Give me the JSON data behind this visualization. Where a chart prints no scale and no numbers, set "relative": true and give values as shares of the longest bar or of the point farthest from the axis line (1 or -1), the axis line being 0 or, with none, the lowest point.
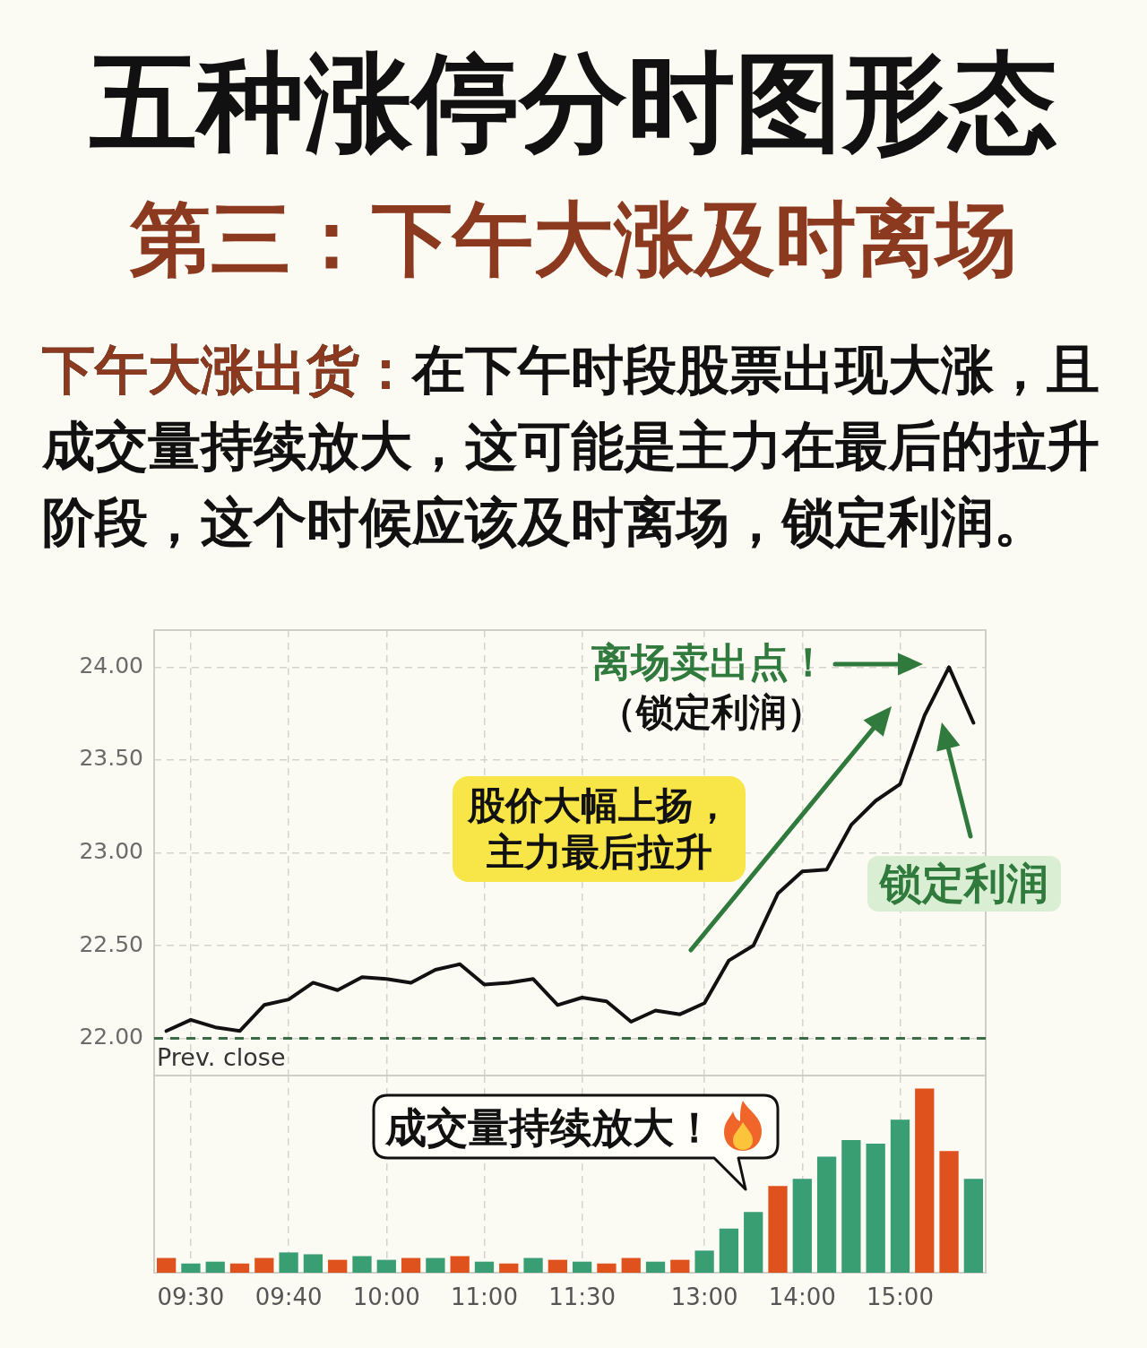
{
  "chart_data": [
    {
      "type": "line",
      "title": "五种涨停分时图形态",
      "subtitle": "第三：下午大涨及时离场",
      "annotations": [
        "下午大涨出货：在下午时段股票出现大涨，且成交量持续放大，这可能是主力在最后的拉升阶段，这个时候应该及时离场，锁定利润。",
        "离场卖出点！",
        "（锁定利润）",
        "股价大幅上扬，主力最后拉升",
        "锁定利润"
      ],
      "categories": [
        null,
        null,
        null,
        null,
        null,
        null,
        null,
        null,
        null,
        null,
        null,
        null,
        null,
        null,
        null,
        null,
        null,
        null,
        null,
        null,
        null,
        null,
        null,
        null,
        null,
        null,
        null,
        null,
        null,
        null,
        null,
        null,
        null,
        null
      ],
      "values": [
        22.04,
        22.1,
        22.06,
        22.04,
        22.18,
        22.21,
        22.3,
        22.26,
        22.33,
        22.32,
        22.3,
        22.37,
        22.4,
        22.29,
        22.3,
        22.32,
        22.18,
        22.22,
        22.2,
        22.09,
        22.15,
        22.13,
        22.19,
        22.42,
        22.5,
        22.78,
        22.9,
        22.91,
        23.15,
        23.28,
        23.37,
        23.74,
        24.0,
        23.7
      ],
      "color": "#111111",
      "ylim": [
        21.8,
        24.2
      ],
      "yticks": [
        {
          "value": 22,
          "label": "22.00"
        },
        {
          "value": 22.5,
          "label": "22.50"
        },
        {
          "value": 23,
          "label": "23.00"
        },
        {
          "value": 23.5,
          "label": "23.50"
        },
        {
          "value": 24,
          "label": "24.00"
        }
      ],
      "grid": true,
      "ref_lines": [
        {
          "axis": "y",
          "value": 22,
          "label": "Prev. close",
          "color": "#3d6b48",
          "line_style": "dashed"
        }
      ],
      "tick_labels": "y"
    },
    {
      "type": "bar",
      "annotations": [
        "成交量持续放大！"
      ],
      "categories": [
        null,
        "09:30",
        null,
        null,
        null,
        "09:40",
        null,
        null,
        null,
        "10:00",
        null,
        null,
        null,
        "11:00",
        null,
        null,
        null,
        "11:30",
        null,
        null,
        null,
        null,
        "13:00",
        null,
        null,
        null,
        "14:00",
        null,
        null,
        null,
        "15:00",
        null,
        null,
        null
      ],
      "values": [
        0.08,
        0.05,
        0.06,
        0.05,
        0.08,
        0.11,
        0.1,
        0.07,
        0.09,
        0.07,
        0.08,
        0.08,
        0.09,
        0.06,
        0.05,
        0.08,
        0.07,
        0.06,
        0.05,
        0.08,
        0.06,
        0.07,
        0.12,
        0.24,
        0.33,
        0.47,
        0.51,
        0.63,
        0.72,
        0.7,
        0.83,
        1,
        0.66,
        0.51
      ],
      "colors": [
        "#e0521d",
        "#3a9e73",
        "#3a9e73",
        "#e0521d",
        "#e0521d",
        "#3a9e73",
        "#3a9e73",
        "#e0521d",
        "#3a9e73",
        "#3a9e73",
        "#e0521d",
        "#3a9e73",
        "#e0521d",
        "#3a9e73",
        "#e0521d",
        "#3a9e73",
        "#e0521d",
        "#3a9e73",
        "#e0521d",
        "#e0521d",
        "#3a9e73",
        "#e0521d",
        "#3a9e73",
        "#3a9e73",
        "#3a9e73",
        "#e0521d",
        "#3a9e73",
        "#3a9e73",
        "#3a9e73",
        "#3a9e73",
        "#3a9e73",
        "#e0521d",
        "#e0521d",
        "#3a9e73"
      ],
      "relative": true,
      "grid": "x",
      "tick_labels": "x"
    }
  ]
}
